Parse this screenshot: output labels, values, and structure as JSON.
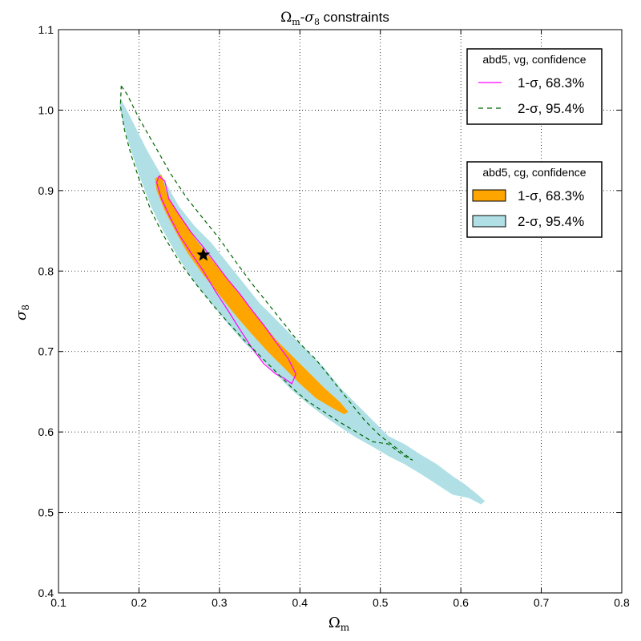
{
  "chart_data": {
    "type": "contour",
    "title_parts": {
      "omega": "Ω",
      "m_sub": "m",
      "dash": "-",
      "sigma": "σ",
      "eight_sub": "8",
      "rest": " constraints"
    },
    "xlabel": {
      "symbol": "Ω",
      "sub": "m"
    },
    "ylabel": {
      "symbol": "σ",
      "sub": "8"
    },
    "xlim": [
      0.1,
      0.8
    ],
    "ylim": [
      0.4,
      1.1
    ],
    "x_ticks": [
      "0.1",
      "0.2",
      "0.3",
      "0.4",
      "0.5",
      "0.6",
      "0.7",
      "0.8"
    ],
    "y_ticks": [
      "0.4",
      "0.5",
      "0.6",
      "0.7",
      "0.8",
      "0.9",
      "1.0",
      "1.1"
    ],
    "grid": true,
    "fiducial_star": {
      "x": 0.28,
      "y": 0.82
    },
    "filled_regions": {
      "cg_2sigma": [
        [
          0.177,
          1.015
        ],
        [
          0.19,
          0.99
        ],
        [
          0.21,
          0.95
        ],
        [
          0.23,
          0.915
        ],
        [
          0.25,
          0.88
        ],
        [
          0.27,
          0.855
        ],
        [
          0.29,
          0.835
        ],
        [
          0.31,
          0.81
        ],
        [
          0.33,
          0.785
        ],
        [
          0.35,
          0.76
        ],
        [
          0.37,
          0.74
        ],
        [
          0.39,
          0.72
        ],
        [
          0.41,
          0.7
        ],
        [
          0.43,
          0.68
        ],
        [
          0.45,
          0.655
        ],
        [
          0.47,
          0.635
        ],
        [
          0.49,
          0.615
        ],
        [
          0.51,
          0.595
        ],
        [
          0.53,
          0.585
        ],
        [
          0.55,
          0.572
        ],
        [
          0.57,
          0.56
        ],
        [
          0.59,
          0.545
        ],
        [
          0.605,
          0.535
        ],
        [
          0.62,
          0.523
        ],
        [
          0.63,
          0.514
        ],
        [
          0.625,
          0.51
        ],
        [
          0.61,
          0.518
        ],
        [
          0.59,
          0.522
        ],
        [
          0.57,
          0.535
        ],
        [
          0.55,
          0.548
        ],
        [
          0.53,
          0.56
        ],
        [
          0.51,
          0.57
        ],
        [
          0.49,
          0.582
        ],
        [
          0.47,
          0.593
        ],
        [
          0.45,
          0.606
        ],
        [
          0.43,
          0.62
        ],
        [
          0.41,
          0.635
        ],
        [
          0.39,
          0.652
        ],
        [
          0.37,
          0.672
        ],
        [
          0.35,
          0.692
        ],
        [
          0.33,
          0.712
        ],
        [
          0.31,
          0.735
        ],
        [
          0.29,
          0.76
        ],
        [
          0.27,
          0.785
        ],
        [
          0.25,
          0.815
        ],
        [
          0.23,
          0.85
        ],
        [
          0.215,
          0.88
        ],
        [
          0.2,
          0.92
        ],
        [
          0.19,
          0.95
        ],
        [
          0.18,
          0.985
        ],
        [
          0.176,
          1.005
        ]
      ],
      "cg_1sigma": [
        [
          0.22,
          0.915
        ],
        [
          0.228,
          0.92
        ],
        [
          0.235,
          0.895
        ],
        [
          0.25,
          0.87
        ],
        [
          0.27,
          0.84
        ],
        [
          0.29,
          0.815
        ],
        [
          0.31,
          0.79
        ],
        [
          0.33,
          0.765
        ],
        [
          0.35,
          0.74
        ],
        [
          0.37,
          0.715
        ],
        [
          0.39,
          0.695
        ],
        [
          0.41,
          0.675
        ],
        [
          0.43,
          0.655
        ],
        [
          0.45,
          0.637
        ],
        [
          0.46,
          0.625
        ],
        [
          0.455,
          0.622
        ],
        [
          0.44,
          0.63
        ],
        [
          0.42,
          0.642
        ],
        [
          0.4,
          0.66
        ],
        [
          0.38,
          0.68
        ],
        [
          0.36,
          0.7
        ],
        [
          0.34,
          0.722
        ],
        [
          0.32,
          0.745
        ],
        [
          0.3,
          0.77
        ],
        [
          0.28,
          0.795
        ],
        [
          0.26,
          0.823
        ],
        [
          0.245,
          0.85
        ],
        [
          0.232,
          0.875
        ],
        [
          0.222,
          0.9
        ]
      ]
    },
    "series": [
      {
        "name": "1-σ, 68.3%",
        "group": "abd5, vg, confidence",
        "color": "#ff00ff",
        "style": "solid",
        "points": [
          [
            0.222,
            0.91
          ],
          [
            0.225,
            0.918
          ],
          [
            0.232,
            0.912
          ],
          [
            0.237,
            0.89
          ],
          [
            0.25,
            0.87
          ],
          [
            0.265,
            0.848
          ],
          [
            0.28,
            0.83
          ],
          [
            0.295,
            0.81
          ],
          [
            0.31,
            0.79
          ],
          [
            0.325,
            0.772
          ],
          [
            0.34,
            0.752
          ],
          [
            0.355,
            0.733
          ],
          [
            0.37,
            0.712
          ],
          [
            0.385,
            0.692
          ],
          [
            0.395,
            0.672
          ],
          [
            0.39,
            0.66
          ],
          [
            0.38,
            0.667
          ],
          [
            0.37,
            0.672
          ],
          [
            0.355,
            0.685
          ],
          [
            0.34,
            0.705
          ],
          [
            0.325,
            0.728
          ],
          [
            0.31,
            0.752
          ],
          [
            0.295,
            0.775
          ],
          [
            0.28,
            0.8
          ],
          [
            0.265,
            0.822
          ],
          [
            0.25,
            0.845
          ],
          [
            0.238,
            0.868
          ],
          [
            0.228,
            0.89
          ],
          [
            0.222,
            0.91
          ]
        ]
      },
      {
        "name": "2-σ, 95.4%",
        "group": "abd5, vg, confidence",
        "color": "#006400",
        "style": "dashed",
        "points": [
          [
            0.178,
            1.03
          ],
          [
            0.185,
            1.02
          ],
          [
            0.2,
            0.99
          ],
          [
            0.22,
            0.955
          ],
          [
            0.24,
            0.92
          ],
          [
            0.26,
            0.89
          ],
          [
            0.28,
            0.865
          ],
          [
            0.3,
            0.84
          ],
          [
            0.32,
            0.812
          ],
          [
            0.34,
            0.785
          ],
          [
            0.36,
            0.76
          ],
          [
            0.38,
            0.735
          ],
          [
            0.4,
            0.71
          ],
          [
            0.42,
            0.69
          ],
          [
            0.44,
            0.665
          ],
          [
            0.46,
            0.64
          ],
          [
            0.48,
            0.615
          ],
          [
            0.5,
            0.595
          ],
          [
            0.52,
            0.58
          ],
          [
            0.54,
            0.565
          ],
          [
            0.53,
            0.57
          ],
          [
            0.51,
            0.585
          ],
          [
            0.49,
            0.588
          ],
          [
            0.47,
            0.6
          ],
          [
            0.45,
            0.612
          ],
          [
            0.43,
            0.625
          ],
          [
            0.41,
            0.638
          ],
          [
            0.39,
            0.655
          ],
          [
            0.37,
            0.675
          ],
          [
            0.35,
            0.695
          ],
          [
            0.33,
            0.715
          ],
          [
            0.31,
            0.737
          ],
          [
            0.29,
            0.76
          ],
          [
            0.27,
            0.785
          ],
          [
            0.25,
            0.812
          ],
          [
            0.23,
            0.845
          ],
          [
            0.215,
            0.875
          ],
          [
            0.2,
            0.915
          ],
          [
            0.19,
            0.945
          ],
          [
            0.182,
            0.975
          ],
          [
            0.177,
            1.005
          ],
          [
            0.178,
            1.03
          ]
        ]
      }
    ],
    "legends": [
      {
        "title": "abd5, vg, confidence",
        "placement": "top-right",
        "items": [
          {
            "label": "1-σ, 68.3%",
            "kind": "line",
            "color": "#ff00ff",
            "style": "solid"
          },
          {
            "label": "2-σ, 95.4%",
            "kind": "line",
            "color": "#006400",
            "style": "dashed"
          }
        ]
      },
      {
        "title": "abd5, cg, confidence",
        "placement": "upper-right",
        "items": [
          {
            "label": "1-σ, 68.3%",
            "kind": "patch",
            "color": "#ffa500"
          },
          {
            "label": "2-σ, 95.4%",
            "kind": "patch",
            "color": "#b0e0e6"
          }
        ]
      }
    ],
    "colors": {
      "cg_1sigma": "#ffa500",
      "cg_2sigma": "#b0e0e6",
      "vg_1sigma": "#ff00ff",
      "vg_2sigma": "#006400",
      "star": "#000000"
    }
  }
}
